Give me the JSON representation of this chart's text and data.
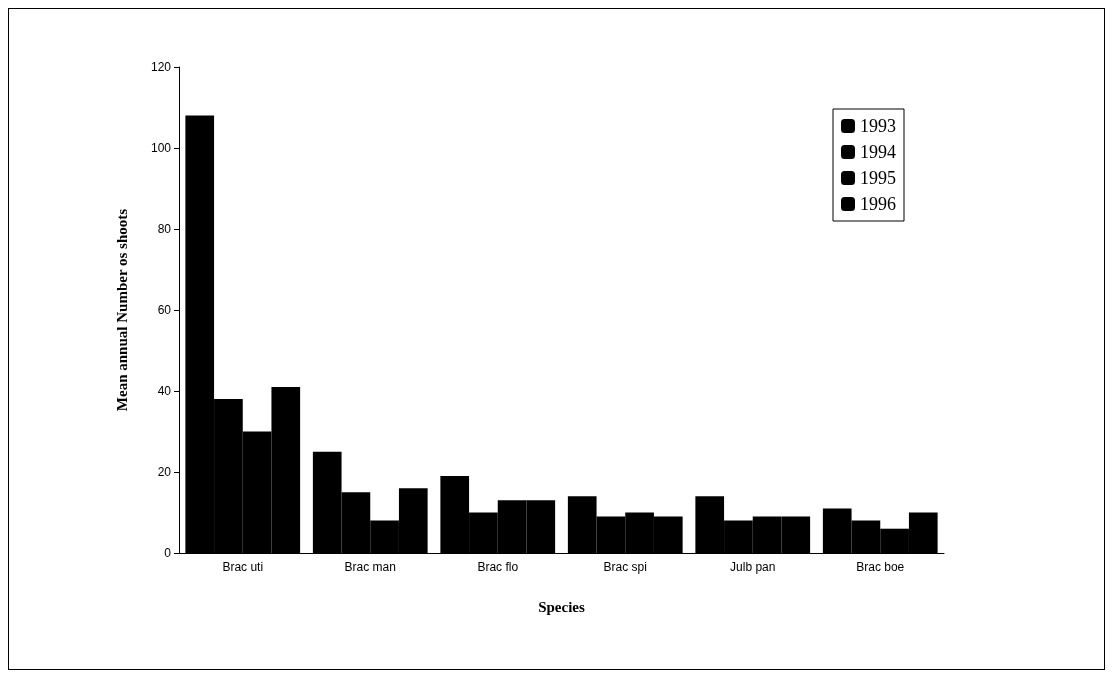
{
  "chart_data": {
    "type": "bar",
    "xlabel": "Species",
    "ylabel": "Mean annual Number os shoots",
    "categories": [
      "Brac uti",
      "Brac man",
      "Brac flo",
      "Brac spi",
      "Julb pan",
      "Brac boe"
    ],
    "series": [
      {
        "name": "1993",
        "color": "#000000",
        "values": [
          108,
          25,
          19,
          14,
          14,
          11
        ]
      },
      {
        "name": "1994",
        "color": "#000000",
        "values": [
          38,
          15,
          10,
          9,
          8,
          8
        ]
      },
      {
        "name": "1995",
        "color": "#000000",
        "values": [
          30,
          8,
          13,
          10,
          9,
          6
        ]
      },
      {
        "name": "1996",
        "color": "#000000",
        "values": [
          41,
          16,
          13,
          9,
          9,
          10
        ]
      }
    ],
    "ylim": [
      0,
      120
    ],
    "yticks": [
      0,
      20,
      40,
      60,
      80,
      100,
      120
    ],
    "grid": false,
    "legend": "top right"
  }
}
